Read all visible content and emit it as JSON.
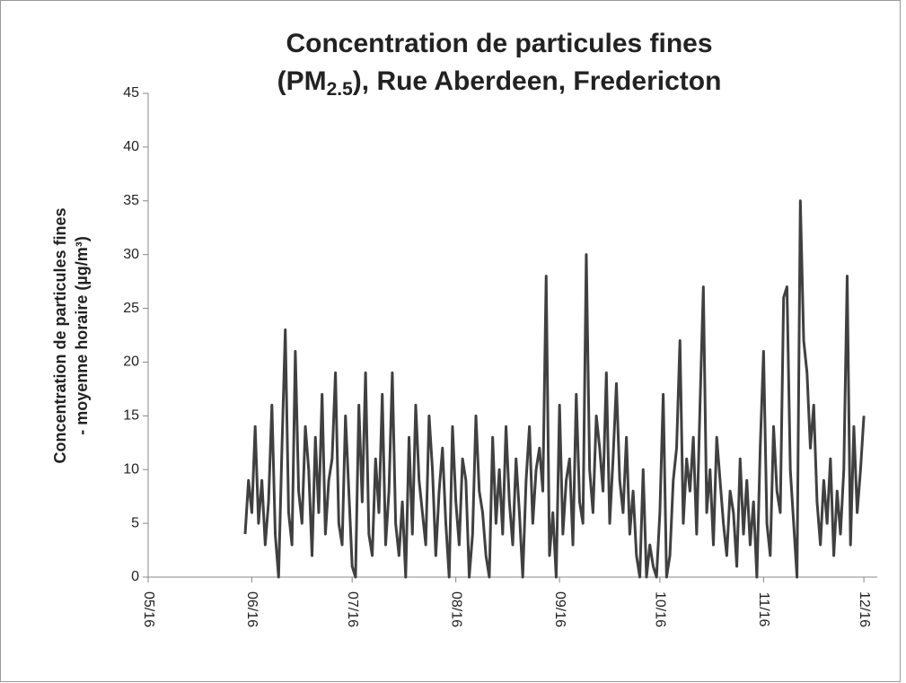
{
  "chart_data": {
    "type": "line",
    "title": "Concentration de particules fines",
    "title_2": {
      "text": "(PM",
      "sub": "2.5",
      "tail": "), Rue Aberdeen, Fredericton"
    },
    "ylabel": [
      "Concentration de particules fines",
      "- moyenne horaire (µg/m³)"
    ],
    "color": "#404040",
    "x": [
      29,
      30,
      31,
      32,
      33,
      34,
      35,
      36,
      37,
      38,
      39,
      40,
      41,
      42,
      43,
      44,
      45,
      46,
      47,
      48,
      49,
      50,
      51,
      52,
      53,
      54,
      55,
      56,
      57,
      58,
      59,
      60,
      61,
      62,
      63,
      64,
      65,
      66,
      67,
      68,
      69,
      70,
      71,
      72,
      73,
      74,
      75,
      76,
      77,
      78,
      79,
      80,
      81,
      82,
      83,
      84,
      85,
      86,
      87,
      88,
      89,
      90,
      91,
      92,
      93,
      94,
      95,
      96,
      97,
      98,
      99,
      100,
      101,
      102,
      103,
      104,
      105,
      106,
      107,
      108,
      109,
      110,
      111,
      112,
      113,
      114,
      115,
      116,
      117,
      118,
      119,
      120,
      121,
      122,
      123,
      124,
      125,
      126,
      127,
      128,
      129,
      130,
      131,
      132,
      133,
      134,
      135,
      136,
      137,
      138,
      139,
      140,
      141,
      142,
      143,
      144,
      145,
      146,
      147,
      148,
      149,
      150,
      151,
      152,
      153,
      154,
      155,
      156,
      157,
      158,
      159,
      160,
      161,
      162,
      163,
      164,
      165,
      166,
      167,
      168,
      169,
      170,
      171,
      172,
      173,
      174,
      175,
      176,
      177,
      178,
      179,
      180,
      181,
      182,
      183,
      184,
      185,
      186,
      187,
      188,
      189,
      190,
      191,
      192,
      193,
      194,
      195,
      196,
      197,
      198,
      199,
      200,
      201,
      202,
      203,
      204,
      205,
      206,
      207,
      208,
      209,
      210,
      211,
      212,
      213,
      214
    ],
    "values": [
      4,
      9,
      6,
      14,
      5,
      9,
      3,
      7,
      16,
      4,
      0,
      12,
      23,
      6,
      3,
      21,
      8,
      5,
      14,
      10,
      2,
      13,
      6,
      17,
      4,
      9,
      11,
      19,
      5,
      3,
      15,
      8,
      1,
      0,
      16,
      7,
      19,
      4,
      2,
      11,
      6,
      17,
      3,
      8,
      19,
      5,
      2,
      7,
      0,
      13,
      4,
      16,
      9,
      6,
      3,
      15,
      10,
      2,
      8,
      12,
      5,
      0,
      14,
      7,
      3,
      11,
      9,
      0,
      4,
      15,
      8,
      6,
      2,
      0,
      13,
      5,
      10,
      4,
      14,
      7,
      3,
      11,
      6,
      0,
      9,
      14,
      5,
      10,
      12,
      8,
      28,
      2,
      6,
      0,
      16,
      4,
      9,
      11,
      3,
      17,
      7,
      5,
      30,
      10,
      6,
      15,
      12,
      8,
      19,
      5,
      11,
      18,
      9,
      6,
      13,
      4,
      8,
      2,
      0,
      10,
      0,
      3,
      1,
      0,
      6,
      17,
      0,
      2,
      9,
      12,
      22,
      5,
      11,
      8,
      13,
      4,
      16,
      27,
      6,
      10,
      3,
      13,
      9,
      5,
      2,
      8,
      6,
      1,
      11,
      4,
      9,
      3,
      7,
      0,
      12,
      21,
      5,
      2,
      14,
      8,
      6,
      26,
      27,
      10,
      5,
      0,
      35,
      22,
      19,
      12,
      16,
      7,
      3,
      9,
      5,
      11,
      2,
      8,
      4,
      10,
      28,
      3,
      14,
      6,
      10,
      15
    ],
    "xlim": [
      0,
      218
    ],
    "xticks": [
      {
        "value": 0,
        "label": "05/16"
      },
      {
        "value": 31,
        "label": "06/16"
      },
      {
        "value": 61,
        "label": "07/16"
      },
      {
        "value": 92,
        "label": "08/16"
      },
      {
        "value": 123,
        "label": "09/16"
      },
      {
        "value": 153,
        "label": "10/16"
      },
      {
        "value": 184,
        "label": "11/16"
      },
      {
        "value": 214,
        "label": "12/16"
      }
    ],
    "ylim": [
      0,
      45
    ],
    "yticks": [
      0,
      5,
      10,
      15,
      20,
      25,
      30,
      35,
      40,
      45
    ]
  }
}
